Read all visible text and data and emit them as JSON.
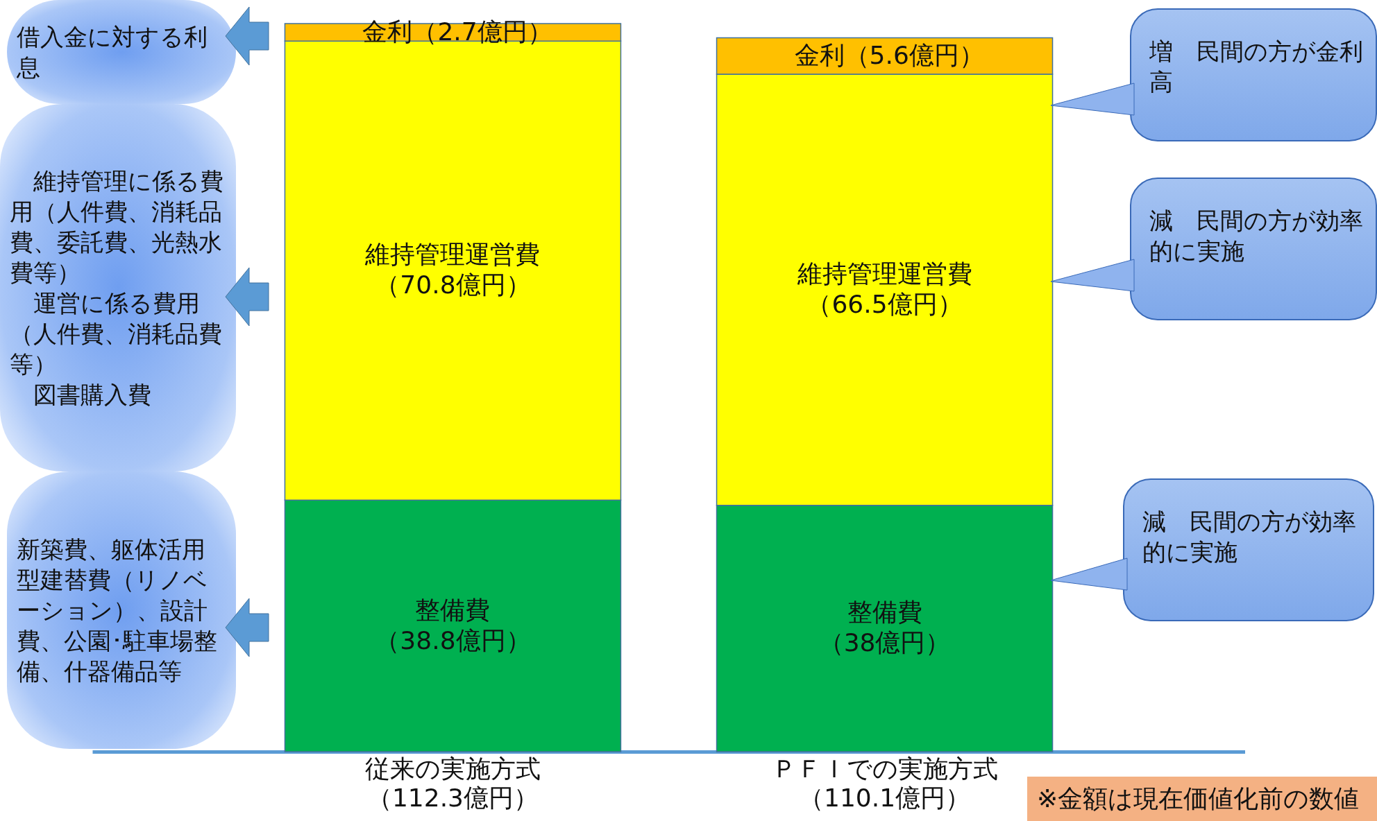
{
  "chart_data": {
    "type": "bar",
    "stacked": true,
    "categories": [
      "従来の実施方式",
      "ＰＦＩでの実施方式"
    ],
    "totals": [
      "（112.3億円）",
      "（110.1億円）"
    ],
    "series": [
      {
        "name": "整備費",
        "color": "#00b050",
        "values": [
          38.8,
          38
        ],
        "value_labels": [
          "（38.8億円）",
          "（38億円）"
        ]
      },
      {
        "name": "維持管理運営費",
        "color": "#ffff00",
        "values": [
          70.8,
          66.5
        ],
        "value_labels": [
          "（70.8億円）",
          "（66.5億円）"
        ]
      },
      {
        "name": "金利",
        "color": "#ffc000",
        "values": [
          2.7,
          5.6
        ],
        "value_labels": [
          "（2.7億円）",
          "（5.6億円）"
        ]
      }
    ],
    "annotations": [
      "借入金に対する利息",
      "　維持管理に係る費用（人件費、消耗品費、委託費、光熱水費等）",
      "　運営に係る費用（人件費、消耗品費等）",
      "　図書購入費",
      "新築費、躯体活用型建替費（リノベーション）、設計費、公園･駐車場整備、什器備品等",
      "増　民間の方が金利高",
      "減　民間の方が効率的に実施",
      "減　民間の方が効率的に実施",
      "※金額は現在価値化前の数値"
    ]
  }
}
